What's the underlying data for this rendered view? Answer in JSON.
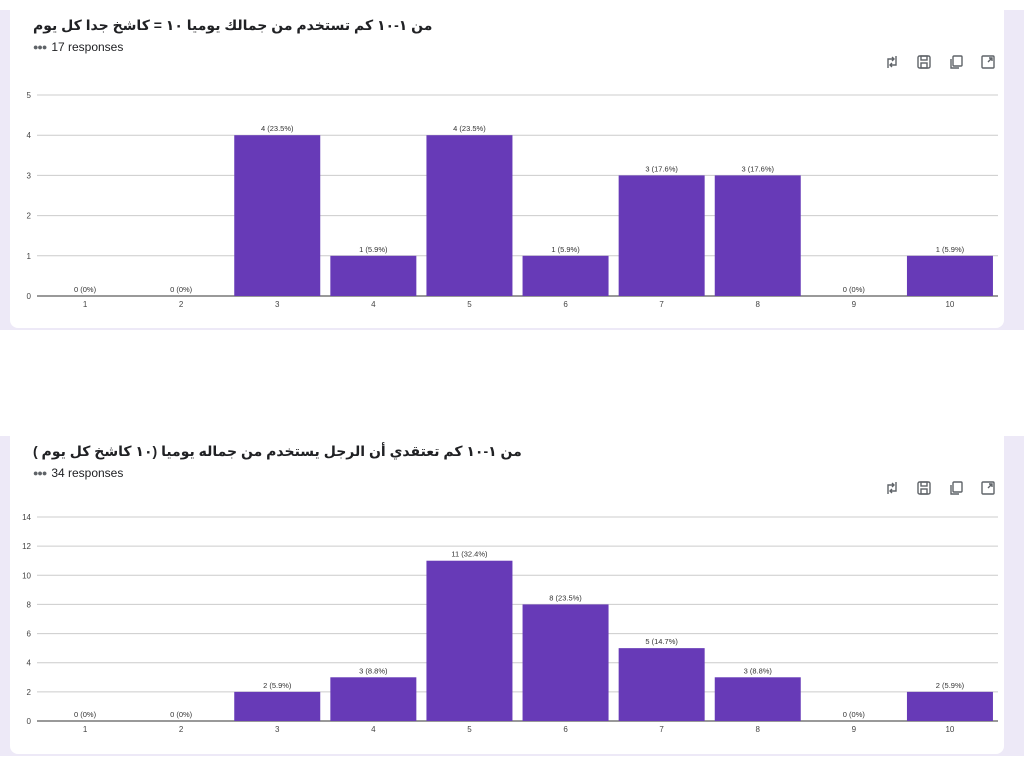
{
  "charts": [
    {
      "title": "من ١-١٠ كم تستخدم من جمالك يوميا ١٠ = كاشخ جدا كل يوم",
      "responses": "17 responses"
    },
    {
      "title": "من ١-١٠ كم تعتقدي أن الرجل يستخدم من جماله يوميا (١٠ كاشخ كل يوم )",
      "responses": "34 responses"
    }
  ],
  "toolbar_icons": [
    "swap-icon",
    "save-icon",
    "copy-icon",
    "expand-icon"
  ],
  "colors": {
    "bar": "#673ab7",
    "band": "#ede9f7",
    "grid": "#cccccc"
  },
  "chart_data": [
    {
      "type": "bar",
      "categories": [
        "1",
        "2",
        "3",
        "4",
        "5",
        "6",
        "7",
        "8",
        "9",
        "10"
      ],
      "values": [
        0,
        0,
        4,
        1,
        4,
        1,
        3,
        3,
        0,
        1
      ],
      "data_labels": [
        "0 (0%)",
        "0 (0%)",
        "4 (23.5%)",
        "1 (5.9%)",
        "4 (23.5%)",
        "1 (5.9%)",
        "3 (17.6%)",
        "3 (17.6%)",
        "0 (0%)",
        "1 (5.9%)"
      ],
      "yticks": [
        0,
        1,
        2,
        3,
        4,
        5
      ],
      "ylim": [
        0,
        5
      ],
      "grid": true
    },
    {
      "type": "bar",
      "categories": [
        "1",
        "2",
        "3",
        "4",
        "5",
        "6",
        "7",
        "8",
        "9",
        "10"
      ],
      "values": [
        0,
        0,
        2,
        3,
        11,
        8,
        5,
        3,
        0,
        2
      ],
      "data_labels": [
        "0 (0%)",
        "0 (0%)",
        "2 (5.9%)",
        "3 (8.8%)",
        "11 (32.4%)",
        "8 (23.5%)",
        "5 (14.7%)",
        "3 (8.8%)",
        "0 (0%)",
        "2 (5.9%)"
      ],
      "yticks": [
        0,
        2,
        4,
        6,
        8,
        10,
        12,
        14
      ],
      "ylim": [
        0,
        14
      ],
      "grid": true
    }
  ]
}
